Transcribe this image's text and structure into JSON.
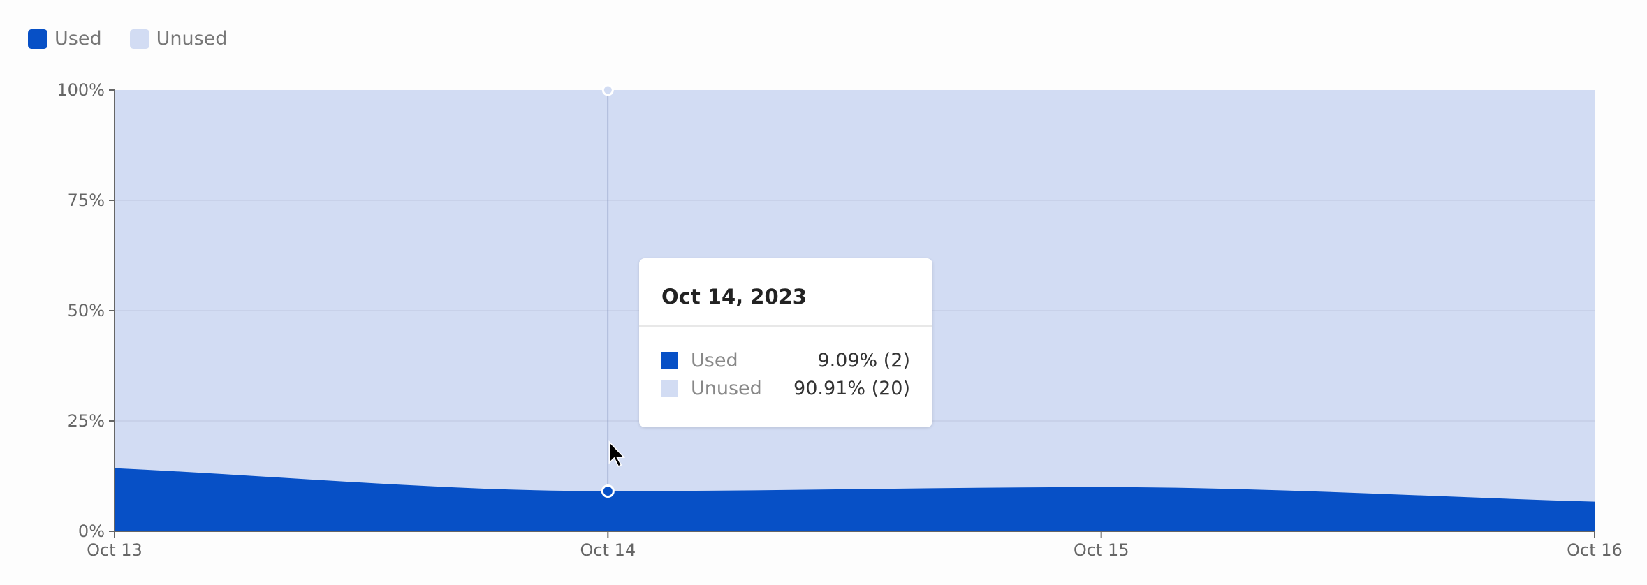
{
  "chart_data": {
    "type": "area",
    "stacked": true,
    "normalized": true,
    "categories": [
      "Oct 13",
      "Oct 14",
      "Oct 15",
      "Oct 16"
    ],
    "series": [
      {
        "name": "Used",
        "color": "#0750c6",
        "values": [
          14.3,
          9.09,
          10.0,
          6.7
        ]
      },
      {
        "name": "Unused",
        "color": "#d2dcf3",
        "values": [
          85.7,
          90.91,
          90.0,
          93.3
        ]
      }
    ],
    "yticks": [
      "0%",
      "25%",
      "50%",
      "75%",
      "100%"
    ],
    "ylim": [
      0,
      100
    ],
    "grid": true,
    "legend_position": "top-left",
    "tooltip": {
      "title": "Oct 14, 2023",
      "rows": [
        {
          "name": "Used",
          "value": "9.09% (2)",
          "color": "#0750c6"
        },
        {
          "name": "Unused",
          "value": "90.91% (20)",
          "color": "#d2dcf3"
        }
      ]
    }
  }
}
